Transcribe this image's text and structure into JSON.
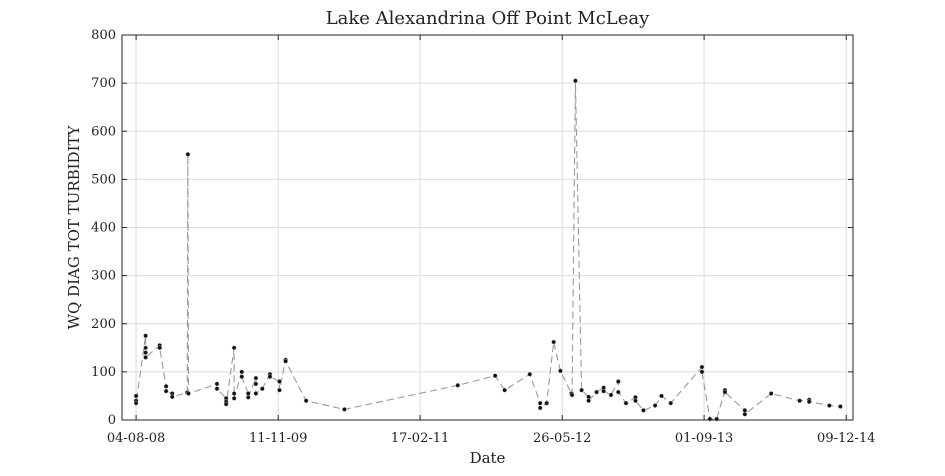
{
  "chart_data": {
    "type": "scatter",
    "title": "Lake Alexandrina Off Point McLeay",
    "xlabel": "Date",
    "ylabel": "WQ DIAG TOT TURBIDITY",
    "ylim": [
      0,
      800
    ],
    "xlim": [
      "2008-06-19",
      "2014-12-31"
    ],
    "yticks": [
      0,
      100,
      200,
      300,
      400,
      500,
      600,
      700,
      800
    ],
    "xticks": [
      "04-08-08",
      "11-11-09",
      "17-02-11",
      "26-05-12",
      "01-09-13",
      "09-12-14"
    ],
    "grid": true,
    "line_style": "dashed",
    "line_color": "#9a9a9a",
    "marker_color": "#111111",
    "series": [
      {
        "points": [
          {
            "x": "2008-08-04",
            "y": 50
          },
          {
            "x": "2008-08-04",
            "y": 40
          },
          {
            "x": "2008-08-04",
            "y": 35
          },
          {
            "x": "2008-09-04",
            "y": 175
          },
          {
            "x": "2008-09-04",
            "y": 150
          },
          {
            "x": "2008-09-04",
            "y": 140
          },
          {
            "x": "2008-09-04",
            "y": 130
          },
          {
            "x": "2008-10-20",
            "y": 155
          },
          {
            "x": "2008-10-20",
            "y": 150
          },
          {
            "x": "2008-11-10",
            "y": 70
          },
          {
            "x": "2008-11-10",
            "y": 60
          },
          {
            "x": "2008-11-30",
            "y": 55
          },
          {
            "x": "2008-11-30",
            "y": 48
          },
          {
            "x": "2009-01-18",
            "y": 57
          },
          {
            "x": "2009-01-20",
            "y": 552
          },
          {
            "x": "2009-01-22",
            "y": 55
          },
          {
            "x": "2009-04-25",
            "y": 75
          },
          {
            "x": "2009-04-25",
            "y": 65
          },
          {
            "x": "2009-05-25",
            "y": 45
          },
          {
            "x": "2009-05-25",
            "y": 38
          },
          {
            "x": "2009-05-25",
            "y": 33
          },
          {
            "x": "2009-06-20",
            "y": 150
          },
          {
            "x": "2009-06-20",
            "y": 55
          },
          {
            "x": "2009-06-20",
            "y": 45
          },
          {
            "x": "2009-07-15",
            "y": 100
          },
          {
            "x": "2009-07-15",
            "y": 90
          },
          {
            "x": "2009-08-05",
            "y": 55
          },
          {
            "x": "2009-08-05",
            "y": 47
          },
          {
            "x": "2009-08-30",
            "y": 87
          },
          {
            "x": "2009-08-30",
            "y": 75
          },
          {
            "x": "2009-08-30",
            "y": 55
          },
          {
            "x": "2009-09-20",
            "y": 65
          },
          {
            "x": "2009-10-15",
            "y": 95
          },
          {
            "x": "2009-10-15",
            "y": 90
          },
          {
            "x": "2009-11-15",
            "y": 80
          },
          {
            "x": "2009-11-15",
            "y": 62
          },
          {
            "x": "2009-12-05",
            "y": 125
          },
          {
            "x": "2009-12-05",
            "y": 122
          },
          {
            "x": "2010-02-10",
            "y": 40
          },
          {
            "x": "2010-06-15",
            "y": 22
          },
          {
            "x": "2011-06-20",
            "y": 72
          },
          {
            "x": "2011-10-20",
            "y": 92
          },
          {
            "x": "2011-11-20",
            "y": 62
          },
          {
            "x": "2012-02-10",
            "y": 95
          },
          {
            "x": "2012-03-15",
            "y": 35
          },
          {
            "x": "2012-03-15",
            "y": 25
          },
          {
            "x": "2012-04-05",
            "y": 35
          },
          {
            "x": "2012-04-28",
            "y": 162
          },
          {
            "x": "2012-05-20",
            "y": 102
          },
          {
            "x": "2012-06-25",
            "y": 55
          },
          {
            "x": "2012-06-27",
            "y": 52
          },
          {
            "x": "2012-07-08",
            "y": 705
          },
          {
            "x": "2012-07-28",
            "y": 62
          },
          {
            "x": "2012-08-20",
            "y": 48
          },
          {
            "x": "2012-08-20",
            "y": 40
          },
          {
            "x": "2012-09-15",
            "y": 58
          },
          {
            "x": "2012-10-08",
            "y": 67
          },
          {
            "x": "2012-10-08",
            "y": 60
          },
          {
            "x": "2012-11-01",
            "y": 52
          },
          {
            "x": "2012-11-25",
            "y": 80
          },
          {
            "x": "2012-11-25",
            "y": 58
          },
          {
            "x": "2012-12-20",
            "y": 35
          },
          {
            "x": "2013-01-20",
            "y": 47
          },
          {
            "x": "2013-01-20",
            "y": 40
          },
          {
            "x": "2013-02-15",
            "y": 20
          },
          {
            "x": "2013-03-25",
            "y": 30
          },
          {
            "x": "2013-04-15",
            "y": 50
          },
          {
            "x": "2013-05-15",
            "y": 35
          },
          {
            "x": "2013-08-25",
            "y": 110
          },
          {
            "x": "2013-08-25",
            "y": 100
          },
          {
            "x": "2013-09-20",
            "y": 2
          },
          {
            "x": "2013-10-12",
            "y": 2
          },
          {
            "x": "2013-11-08",
            "y": 62
          },
          {
            "x": "2013-11-08",
            "y": 58
          },
          {
            "x": "2014-01-12",
            "y": 20
          },
          {
            "x": "2014-01-12",
            "y": 12
          },
          {
            "x": "2014-04-08",
            "y": 55
          },
          {
            "x": "2014-07-10",
            "y": 40
          },
          {
            "x": "2014-08-10",
            "y": 42
          },
          {
            "x": "2014-08-10",
            "y": 38
          },
          {
            "x": "2014-10-15",
            "y": 30
          },
          {
            "x": "2014-11-20",
            "y": 28
          }
        ]
      }
    ]
  }
}
